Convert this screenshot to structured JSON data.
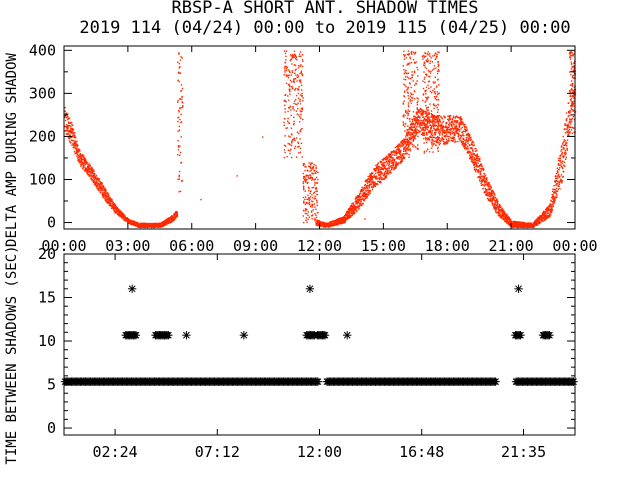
{
  "title": "RBSP-A SHORT ANT. SHADOW TIMES",
  "subtitle": "2019 114 (04/24) 00:00 to 2019 115 (04/25) 00:00",
  "colors": {
    "top_series": "#ff2a00",
    "axes": "#000000",
    "bottom_series": "#000000"
  },
  "chart_data": [
    {
      "type": "scatter",
      "ylabel": "DELTA AMP DURING SHADOW",
      "xlabel": "",
      "xlim": [
        0,
        24
      ],
      "ylim": [
        -15,
        410
      ],
      "x_ticks": [
        "00:00",
        "03:00",
        "06:00",
        "09:00",
        "12:00",
        "15:00",
        "18:00",
        "21:00",
        "00:00"
      ],
      "y_ticks": [
        "0",
        "100",
        "200",
        "300",
        "400"
      ],
      "grid": false,
      "envelope": [
        {
          "x": 0.0,
          "y_low": 205,
          "y_high": 270
        },
        {
          "x": 0.3,
          "y_low": 185,
          "y_high": 240
        },
        {
          "x": 0.7,
          "y_low": 135,
          "y_high": 170
        },
        {
          "x": 1.2,
          "y_low": 105,
          "y_high": 135
        },
        {
          "x": 1.8,
          "y_low": 60,
          "y_high": 90
        },
        {
          "x": 2.4,
          "y_low": 22,
          "y_high": 40
        },
        {
          "x": 3.0,
          "y_low": 0,
          "y_high": 10
        },
        {
          "x": 3.5,
          "y_low": -10,
          "y_high": 0
        },
        {
          "x": 4.5,
          "y_low": -10,
          "y_high": 0
        },
        {
          "x": 5.1,
          "y_low": 5,
          "y_high": 20
        },
        {
          "x": 5.3,
          "y_low": 15,
          "y_high": 30
        },
        {
          "x": 11.8,
          "y_low": -5,
          "y_high": 8
        },
        {
          "x": 12.3,
          "y_low": -10,
          "y_high": 0
        },
        {
          "x": 13.1,
          "y_low": 0,
          "y_high": 15
        },
        {
          "x": 13.8,
          "y_low": 30,
          "y_high": 70
        },
        {
          "x": 14.5,
          "y_low": 80,
          "y_high": 130
        },
        {
          "x": 15.2,
          "y_low": 110,
          "y_high": 160
        },
        {
          "x": 16.0,
          "y_low": 150,
          "y_high": 200
        },
        {
          "x": 16.6,
          "y_low": 210,
          "y_high": 270
        },
        {
          "x": 17.4,
          "y_low": 180,
          "y_high": 250
        },
        {
          "x": 18.6,
          "y_low": 190,
          "y_high": 250
        },
        {
          "x": 19.2,
          "y_low": 130,
          "y_high": 190
        },
        {
          "x": 19.8,
          "y_low": 60,
          "y_high": 110
        },
        {
          "x": 20.4,
          "y_low": 15,
          "y_high": 45
        },
        {
          "x": 21.0,
          "y_low": -10,
          "y_high": 5
        },
        {
          "x": 22.0,
          "y_low": -10,
          "y_high": 0
        },
        {
          "x": 22.8,
          "y_low": 15,
          "y_high": 45
        },
        {
          "x": 23.4,
          "y_low": 100,
          "y_high": 200
        },
        {
          "x": 24.0,
          "y_low": 300,
          "y_high": 400
        }
      ],
      "bursts": [
        {
          "x_start": 5.3,
          "x_end": 5.55,
          "y_low": 50,
          "y_high": 400
        },
        {
          "x_start": 10.3,
          "x_end": 11.2,
          "y_low": 150,
          "y_high": 400
        },
        {
          "x_start": 11.2,
          "x_end": 11.9,
          "y_low": 0,
          "y_high": 140
        },
        {
          "x_start": 15.9,
          "x_end": 16.6,
          "y_low": 150,
          "y_high": 400
        },
        {
          "x_start": 16.8,
          "x_end": 17.6,
          "y_low": 160,
          "y_high": 400
        },
        {
          "x_start": 23.7,
          "x_end": 24.0,
          "y_low": 200,
          "y_high": 400
        }
      ],
      "isolated_points": [
        {
          "x": 9.3,
          "y": 200
        },
        {
          "x": 8.1,
          "y": 110
        },
        {
          "x": 6.4,
          "y": 55
        },
        {
          "x": 14.1,
          "y": 10
        }
      ]
    },
    {
      "type": "scatter",
      "ylabel": "TIME BETWEEN SHADOWS (SEC)",
      "xlabel": "",
      "xlim": [
        0,
        24
      ],
      "ylim": [
        -0.8,
        20
      ],
      "x_ticks": [
        "02:24",
        "07:12",
        "12:00",
        "16:48",
        "21:35"
      ],
      "x_tick_values": [
        2.4,
        7.2,
        12.0,
        16.8,
        21.583
      ],
      "y_ticks": [
        "0",
        "5",
        "10",
        "15",
        "20"
      ],
      "grid": false,
      "marker": "asterisk",
      "baseline": {
        "y": 5.33,
        "x_start": 0,
        "x_end": 24,
        "gaps": [
          [
            11.95,
            12.35
          ],
          [
            20.3,
            21.2
          ]
        ]
      },
      "segments_y10": [
        [
          2.9,
          3.4
        ],
        [
          4.3,
          4.9
        ],
        [
          11.4,
          11.8
        ],
        [
          11.9,
          12.3
        ],
        [
          21.2,
          21.45
        ],
        [
          22.5,
          22.8
        ]
      ],
      "points": [
        {
          "x": 3.2,
          "y": 16
        },
        {
          "x": 11.55,
          "y": 16
        },
        {
          "x": 21.35,
          "y": 16
        },
        {
          "x": 5.75,
          "y": 10.67
        },
        {
          "x": 8.45,
          "y": 10.67
        },
        {
          "x": 13.3,
          "y": 10.67
        }
      ]
    }
  ]
}
